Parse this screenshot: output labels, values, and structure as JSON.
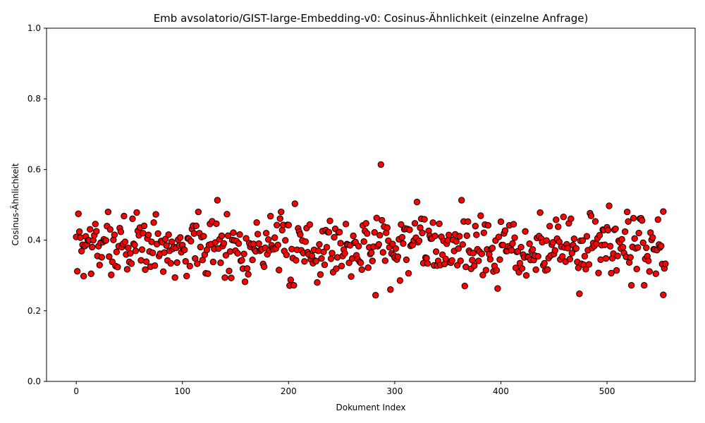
{
  "chart_data": {
    "type": "scatter",
    "title": "Emb avsolatorio/GIST-large-Embedding-v0: Cosinus-Ähnlichkeit (einzelne Anfrage)",
    "xlabel": "Dokument Index",
    "ylabel": "Cosinus-Ähnlichkeit",
    "xlim": [
      -28,
      583
    ],
    "ylim": [
      0.0,
      1.0
    ],
    "xticks": [
      0,
      100,
      200,
      300,
      400,
      500
    ],
    "xtick_labels": [
      "0",
      "100",
      "200",
      "300",
      "400",
      "500"
    ],
    "yticks": [
      0.0,
      0.2,
      0.4,
      0.6,
      0.8,
      1.0
    ],
    "ytick_labels": [
      "0.0",
      "0.2",
      "0.4",
      "0.6",
      "0.8",
      "1.0"
    ],
    "grid": false,
    "point_color": "#ff0000",
    "point_edge_color": "#000000",
    "notable_points": [
      {
        "x": 287,
        "y": 0.614
      },
      {
        "x": 133,
        "y": 0.513
      },
      {
        "x": 363,
        "y": 0.513
      },
      {
        "x": 321,
        "y": 0.508
      },
      {
        "x": 206,
        "y": 0.503
      },
      {
        "x": 502,
        "y": 0.497
      },
      {
        "x": 7,
        "y": 0.298
      },
      {
        "x": 93,
        "y": 0.294
      },
      {
        "x": 205,
        "y": 0.272
      },
      {
        "x": 227,
        "y": 0.28
      },
      {
        "x": 282,
        "y": 0.244
      },
      {
        "x": 296,
        "y": 0.26
      },
      {
        "x": 397,
        "y": 0.263
      },
      {
        "x": 474,
        "y": 0.248
      },
      {
        "x": 523,
        "y": 0.272
      },
      {
        "x": 535,
        "y": 0.272
      },
      {
        "x": 553,
        "y": 0.245
      },
      {
        "x": 553,
        "y": 0.481
      },
      {
        "x": 555,
        "y": 0.333
      }
    ],
    "n_points": 556,
    "seed": 7,
    "typical_range": [
      0.3,
      0.47
    ],
    "center": 0.385
  }
}
